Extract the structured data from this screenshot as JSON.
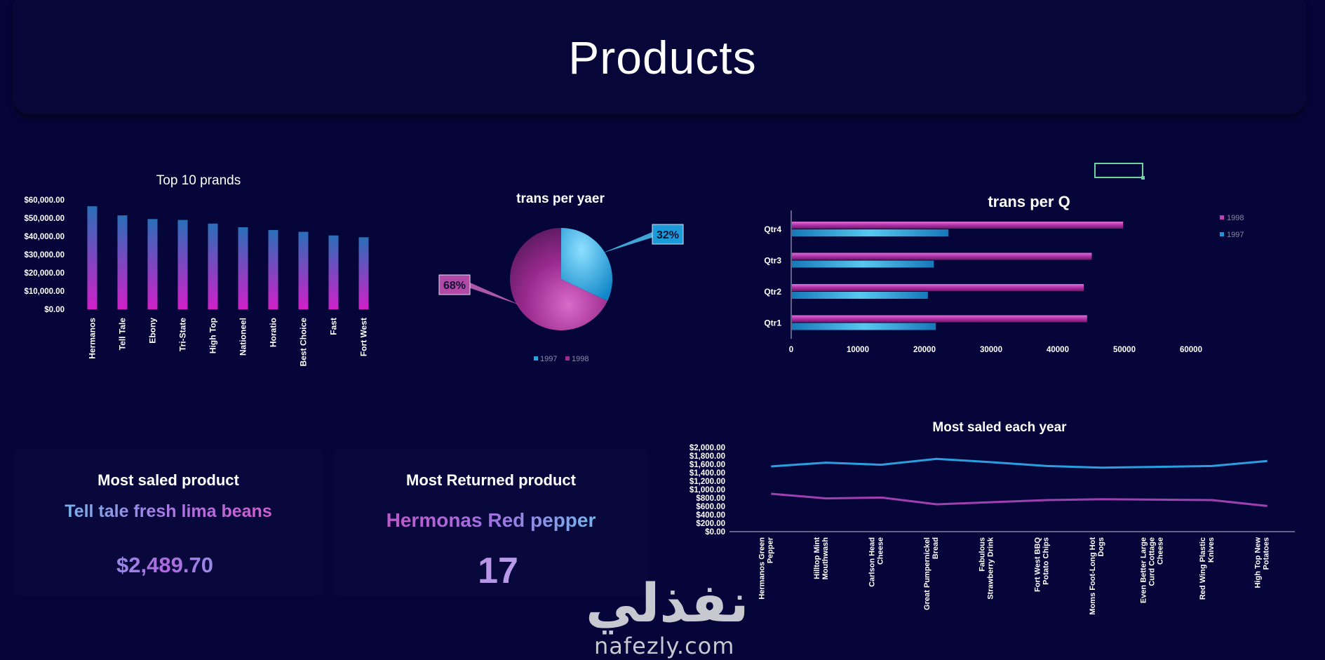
{
  "page": {
    "title": "Products"
  },
  "charts": {
    "top_brands": {
      "type": "bar",
      "title": "Top 10 prands",
      "categories": [
        "Hermanos",
        "Tell Tale",
        "Ebony",
        "Tri-State",
        "High Top",
        "Nationeel",
        "Horatio",
        "Best Choice",
        "Fast",
        "Fort West"
      ],
      "values": [
        56500,
        51500,
        49500,
        49000,
        47000,
        45000,
        43500,
        42500,
        40500,
        39500
      ],
      "ylim": [
        0,
        60000
      ],
      "y_ticks": [
        "$0.00",
        "$10,000.00",
        "$20,000.00",
        "$30,000.00",
        "$40,000.00",
        "$50,000.00",
        "$60,000.00"
      ],
      "colors": {
        "top": "#2a6fb8",
        "bottom": "#d020c8"
      }
    },
    "trans_per_year": {
      "type": "pie",
      "title": "trans per yaer",
      "slices": [
        {
          "name": "1997",
          "value": 32,
          "label": "32%",
          "color": "#22a8e0"
        },
        {
          "name": "1998",
          "value": 68,
          "label": "68%",
          "color": "#a02890"
        }
      ],
      "legend": [
        "1997",
        "1998"
      ],
      "legend_placement": "bottom"
    },
    "trans_per_q": {
      "type": "bar",
      "orientation": "horizontal",
      "title": "trans per Q",
      "categories": [
        "Qtr4",
        "Qtr3",
        "Qtr2",
        "Qtr1"
      ],
      "series": [
        {
          "name": "1998",
          "values": [
            49700,
            45000,
            43800,
            44300
          ],
          "color": "#c040b0"
        },
        {
          "name": "1997",
          "values": [
            23500,
            21300,
            20400,
            21600
          ],
          "color": "#1a9ad8"
        }
      ],
      "x_ticks": [
        "0",
        "10000",
        "20000",
        "30000",
        "40000",
        "50000",
        "60000"
      ],
      "xlim": [
        0,
        60000
      ],
      "legend": [
        "1998",
        "1997"
      ],
      "legend_placement": "right"
    },
    "most_saled_each_year": {
      "type": "line",
      "title": "Most saled each year",
      "categories": [
        "Hermanos Green Pepper",
        "Hilltop Mint Mouthwash",
        "Carlson Head Cheese",
        "Great Pumpernickel Bread",
        "Fabulous Strawberry Drink",
        "Fort West BBQ Potato Chips",
        "Moms Foot-Long Hot Dogs",
        "Even Better Large Curd Cottage Cheese",
        "Red Wing Plastic Knives",
        "High Top New Potatoes"
      ],
      "series": [
        {
          "name": "series-blue",
          "values": [
            1550,
            1640,
            1590,
            1730,
            1650,
            1560,
            1520,
            1540,
            1560,
            1680
          ],
          "color": "#2a9fe0"
        },
        {
          "name": "series-purple",
          "values": [
            900,
            790,
            810,
            650,
            700,
            750,
            770,
            760,
            750,
            610
          ],
          "color": "#a040b0"
        }
      ],
      "ylim": [
        0,
        2000
      ],
      "y_ticks": [
        "$0.00",
        "$200.00",
        "$400.00",
        "$600.00",
        "$800.00",
        "$1,000.00",
        "$1,200.00",
        "$1,400.00",
        "$1,600.00",
        "$1,800.00",
        "$2,000.00"
      ]
    }
  },
  "kpis": {
    "most_saled": {
      "title": "Most saled product",
      "product": "Tell tale fresh lima beans",
      "value": "$2,489.70"
    },
    "most_returned": {
      "title": "Most Returned product",
      "product": "Hermonas Red pepper",
      "value": "17"
    }
  },
  "watermark": {
    "arabic": "نفذلي",
    "latin": "nafezly.com"
  }
}
